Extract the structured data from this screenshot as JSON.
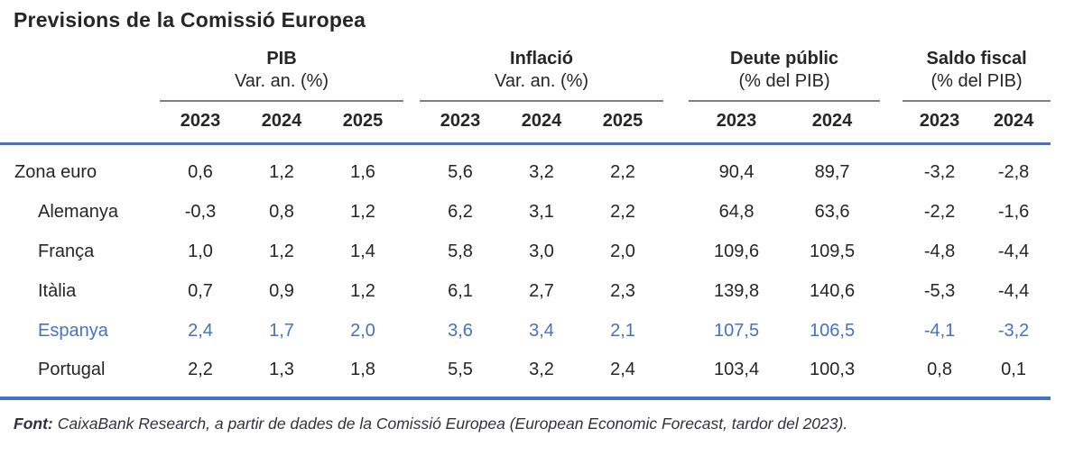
{
  "title": "Previsions de la Comissió Europea",
  "colors": {
    "accent_blue": "#4472C4",
    "rule_gray": "#7F7F7F",
    "text_dark": "#262626"
  },
  "chart_data": {
    "type": "table",
    "title": "Previsions de la Comissió Europea",
    "column_groups": [
      {
        "label": "PIB",
        "unit": "Var. an. (%)",
        "years": [
          "2023",
          "2024",
          "2025"
        ]
      },
      {
        "label": "Inflació",
        "unit": "Var. an. (%)",
        "years": [
          "2023",
          "2024",
          "2025"
        ]
      },
      {
        "label": "Deute públic",
        "unit": "(% del PIB)",
        "years": [
          "2023",
          "2024"
        ]
      },
      {
        "label": "Saldo fiscal",
        "unit": "(% del PIB)",
        "years": [
          "2023",
          "2024"
        ]
      }
    ],
    "rows": [
      {
        "label": "Zona euro",
        "indent": false,
        "highlight": false,
        "values": [
          "0,6",
          "1,2",
          "1,6",
          "5,6",
          "3,2",
          "2,2",
          "90,4",
          "89,7",
          "-3,2",
          "-2,8"
        ]
      },
      {
        "label": "Alemanya",
        "indent": true,
        "highlight": false,
        "values": [
          "-0,3",
          "0,8",
          "1,2",
          "6,2",
          "3,1",
          "2,2",
          "64,8",
          "63,6",
          "-2,2",
          "-1,6"
        ]
      },
      {
        "label": "França",
        "indent": true,
        "highlight": false,
        "values": [
          "1,0",
          "1,2",
          "1,4",
          "5,8",
          "3,0",
          "2,0",
          "109,6",
          "109,5",
          "-4,8",
          "-4,4"
        ]
      },
      {
        "label": "Itàlia",
        "indent": true,
        "highlight": false,
        "values": [
          "0,7",
          "0,9",
          "1,2",
          "6,1",
          "2,7",
          "2,3",
          "139,8",
          "140,6",
          "-5,3",
          "-4,4"
        ]
      },
      {
        "label": "Espanya",
        "indent": true,
        "highlight": true,
        "values": [
          "2,4",
          "1,7",
          "2,0",
          "3,6",
          "3,4",
          "2,1",
          "107,5",
          "106,5",
          "-4,1",
          "-3,2"
        ]
      },
      {
        "label": "Portugal",
        "indent": true,
        "highlight": false,
        "values": [
          "2,2",
          "1,3",
          "1,8",
          "5,5",
          "3,2",
          "2,4",
          "103,4",
          "100,3",
          "0,8",
          "0,1"
        ]
      }
    ]
  },
  "footer": {
    "label": "Font:",
    "text": "CaixaBank Research, a partir de dades de la Comissió Europea (European Economic Forecast, tardor del 2023)."
  }
}
